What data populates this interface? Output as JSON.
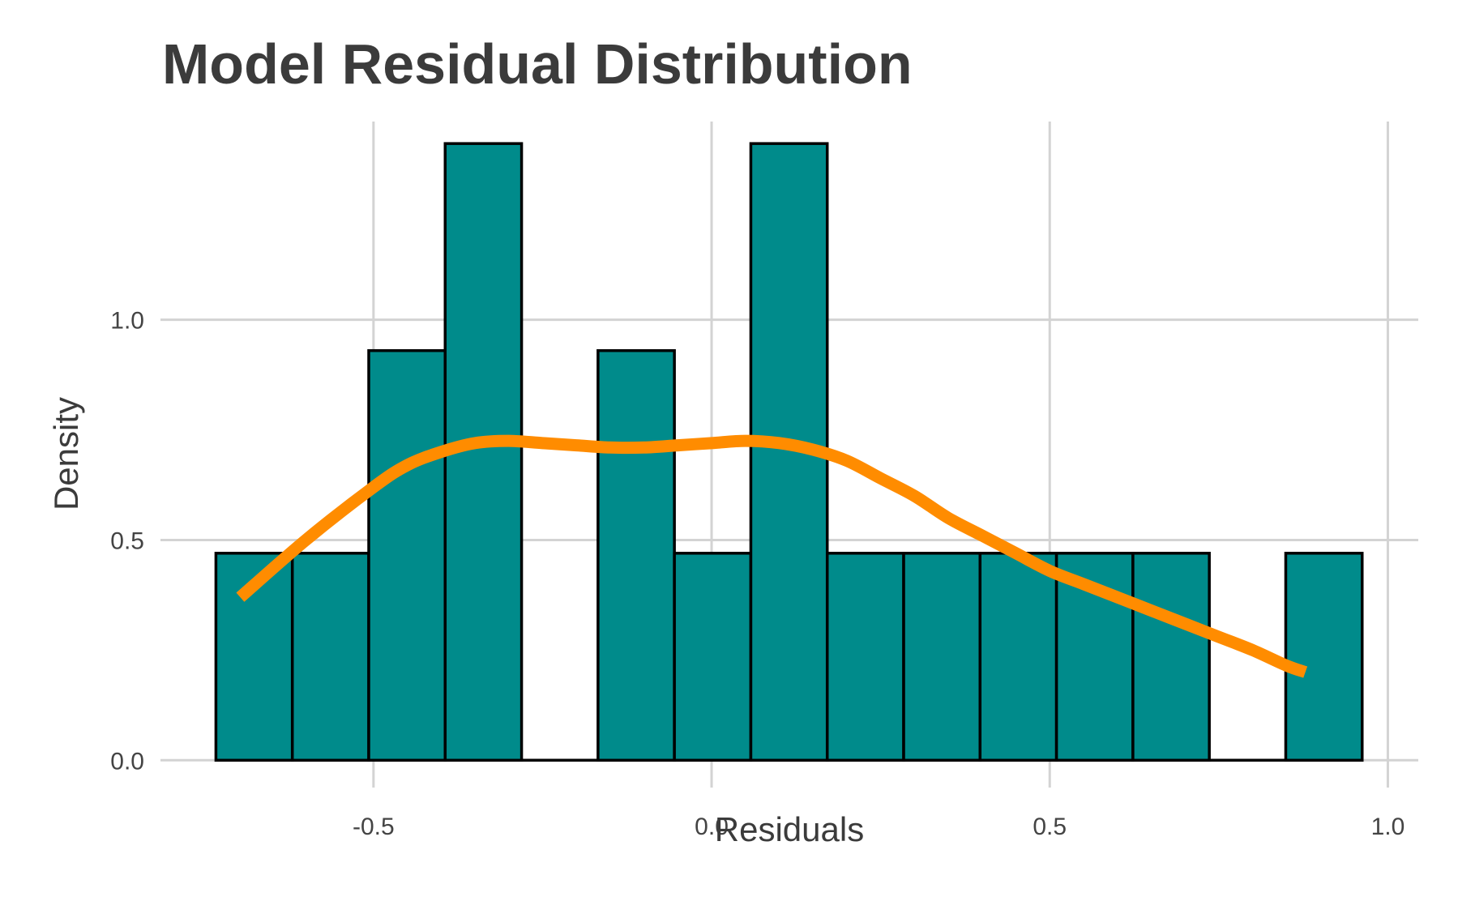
{
  "chart_data": {
    "type": "histogram",
    "title": "Model Residual Distribution",
    "xlabel": "Residuals",
    "ylabel": "Density",
    "xlim": [
      -0.815,
      1.045
    ],
    "ylim": [
      -0.062,
      1.45
    ],
    "x_ticks": [
      -0.5,
      0.0,
      0.5,
      1.0
    ],
    "x_tick_labels": [
      "-0.5",
      "0.0",
      "0.5",
      "1.0"
    ],
    "y_ticks": [
      0.0,
      0.5,
      1.0
    ],
    "y_tick_labels": [
      "0.0",
      "0.5",
      "1.0"
    ],
    "grid": true,
    "bins": [
      {
        "x0": -0.733,
        "x1": -0.62,
        "density": 0.47
      },
      {
        "x0": -0.62,
        "x1": -0.507,
        "density": 0.47
      },
      {
        "x0": -0.507,
        "x1": -0.394,
        "density": 0.93
      },
      {
        "x0": -0.394,
        "x1": -0.281,
        "density": 1.4
      },
      {
        "x0": -0.281,
        "x1": -0.168,
        "density": 0.0
      },
      {
        "x0": -0.168,
        "x1": -0.055,
        "density": 0.93
      },
      {
        "x0": -0.055,
        "x1": 0.058,
        "density": 0.47
      },
      {
        "x0": 0.058,
        "x1": 0.171,
        "density": 1.4
      },
      {
        "x0": 0.171,
        "x1": 0.284,
        "density": 0.47
      },
      {
        "x0": 0.284,
        "x1": 0.397,
        "density": 0.47
      },
      {
        "x0": 0.397,
        "x1": 0.51,
        "density": 0.47
      },
      {
        "x0": 0.51,
        "x1": 0.623,
        "density": 0.47
      },
      {
        "x0": 0.623,
        "x1": 0.736,
        "density": 0.47
      },
      {
        "x0": 0.736,
        "x1": 0.849,
        "density": 0.0
      },
      {
        "x0": 0.849,
        "x1": 0.962,
        "density": 0.47
      }
    ],
    "kde": {
      "x": [
        -0.697,
        -0.6,
        -0.5,
        -0.45,
        -0.4,
        -0.35,
        -0.3,
        -0.25,
        -0.2,
        -0.15,
        -0.1,
        -0.05,
        0.0,
        0.05,
        0.1,
        0.15,
        0.2,
        0.25,
        0.3,
        0.35,
        0.4,
        0.45,
        0.5,
        0.55,
        0.6,
        0.65,
        0.7,
        0.75,
        0.8,
        0.85,
        0.878
      ],
      "y": [
        0.37,
        0.5,
        0.62,
        0.67,
        0.7,
        0.72,
        0.725,
        0.72,
        0.715,
        0.71,
        0.71,
        0.715,
        0.72,
        0.725,
        0.72,
        0.705,
        0.68,
        0.64,
        0.6,
        0.55,
        0.51,
        0.47,
        0.43,
        0.4,
        0.37,
        0.34,
        0.31,
        0.28,
        0.25,
        0.215,
        0.2
      ]
    },
    "colors": {
      "bar_fill": "#008b8b",
      "bar_edge": "#000000",
      "kde_line": "#ff8c00",
      "grid": "#d3d3d3",
      "text": "#3b3b3b"
    }
  }
}
